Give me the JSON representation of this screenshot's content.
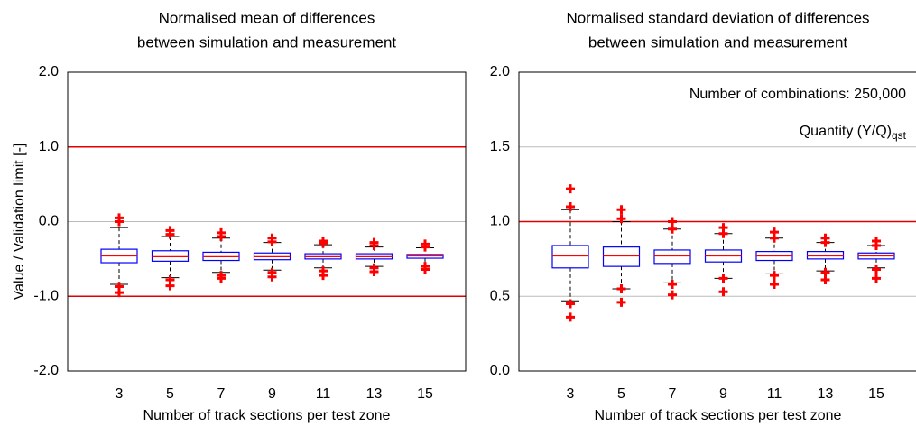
{
  "chart_data": [
    {
      "type": "box",
      "title": [
        "Normalised mean of differences",
        "between simulation and measurement"
      ],
      "y_label": "Value / Validation limit [-]",
      "x_label": "Number of track sections per test zone",
      "categories": [
        "3",
        "5",
        "7",
        "9",
        "11",
        "13",
        "15"
      ],
      "ylim": [
        -2,
        2
      ],
      "yticks": [
        {
          "value": 2,
          "label": "2.0"
        },
        {
          "value": 1,
          "label": "1.0"
        },
        {
          "value": 0,
          "label": "0.0"
        },
        {
          "value": -1,
          "label": "-1.0"
        },
        {
          "value": -2,
          "label": "-2.0"
        }
      ],
      "grid": true,
      "limit_lines": [
        1,
        -1
      ],
      "limit_color": "#e00000",
      "box_color": "#0000ff",
      "median_color": "#ff0000",
      "outlier_color": "#ff0000",
      "boxes": [
        {
          "whisker_low": -0.84,
          "q1": -0.55,
          "median": -0.46,
          "q3": -0.37,
          "whisker_high": -0.08,
          "outliers": [
            -0.87,
            -0.95,
            0.0,
            0.05
          ]
        },
        {
          "whisker_low": -0.75,
          "q1": -0.53,
          "median": -0.47,
          "q3": -0.39,
          "whisker_high": -0.2,
          "outliers": [
            -0.78,
            -0.86,
            -0.12,
            -0.17
          ]
        },
        {
          "whisker_low": -0.68,
          "q1": -0.52,
          "median": -0.47,
          "q3": -0.41,
          "whisker_high": -0.22,
          "outliers": [
            -0.72,
            -0.76,
            -0.15,
            -0.2
          ]
        },
        {
          "whisker_low": -0.65,
          "q1": -0.51,
          "median": -0.47,
          "q3": -0.42,
          "whisker_high": -0.28,
          "outliers": [
            -0.68,
            -0.74,
            -0.22,
            -0.27
          ]
        },
        {
          "whisker_low": -0.62,
          "q1": -0.5,
          "median": -0.47,
          "q3": -0.43,
          "whisker_high": -0.31,
          "outliers": [
            -0.66,
            -0.72,
            -0.26,
            -0.29
          ]
        },
        {
          "whisker_low": -0.6,
          "q1": -0.5,
          "median": -0.47,
          "q3": -0.43,
          "whisker_high": -0.34,
          "outliers": [
            -0.62,
            -0.67,
            -0.28,
            -0.32
          ]
        },
        {
          "whisker_low": -0.58,
          "q1": -0.49,
          "median": -0.46,
          "q3": -0.44,
          "whisker_high": -0.35,
          "outliers": [
            -0.6,
            -0.64,
            -0.3,
            -0.34
          ]
        }
      ]
    },
    {
      "type": "box",
      "title": [
        "Normalised standard deviation of differences",
        "between simulation and measurement"
      ],
      "x_label": "Number of track sections per test zone",
      "annotations": [
        {
          "text": "Number  of combinations: 250,000"
        },
        {
          "text": "Quantity (Y/Q)",
          "subscript": "qst"
        }
      ],
      "categories": [
        "3",
        "5",
        "7",
        "9",
        "11",
        "13",
        "15"
      ],
      "ylim": [
        0,
        2
      ],
      "yticks": [
        {
          "value": 2,
          "label": "2.0"
        },
        {
          "value": 1.5,
          "label": "1.5"
        },
        {
          "value": 1,
          "label": "1.0"
        },
        {
          "value": 0.5,
          "label": "0.5"
        },
        {
          "value": 0,
          "label": "0.0"
        }
      ],
      "grid": true,
      "limit_lines": [
        1
      ],
      "limit_color": "#e00000",
      "box_color": "#0000ff",
      "median_color": "#ff0000",
      "outlier_color": "#ff0000",
      "boxes": [
        {
          "whisker_low": 0.47,
          "q1": 0.69,
          "median": 0.77,
          "q3": 0.84,
          "whisker_high": 1.08,
          "outliers": [
            0.36,
            0.45,
            1.1,
            1.22
          ]
        },
        {
          "whisker_low": 0.55,
          "q1": 0.7,
          "median": 0.77,
          "q3": 0.83,
          "whisker_high": 1.0,
          "outliers": [
            0.46,
            0.55,
            1.02,
            1.08
          ]
        },
        {
          "whisker_low": 0.59,
          "q1": 0.72,
          "median": 0.77,
          "q3": 0.81,
          "whisker_high": 0.95,
          "outliers": [
            0.51,
            0.58,
            0.95,
            1.0
          ]
        },
        {
          "whisker_low": 0.62,
          "q1": 0.73,
          "median": 0.77,
          "q3": 0.81,
          "whisker_high": 0.92,
          "outliers": [
            0.53,
            0.62,
            0.92,
            0.96
          ]
        },
        {
          "whisker_low": 0.65,
          "q1": 0.74,
          "median": 0.77,
          "q3": 0.8,
          "whisker_high": 0.89,
          "outliers": [
            0.58,
            0.64,
            0.89,
            0.93
          ]
        },
        {
          "whisker_low": 0.67,
          "q1": 0.75,
          "median": 0.77,
          "q3": 0.8,
          "whisker_high": 0.86,
          "outliers": [
            0.61,
            0.66,
            0.86,
            0.89
          ]
        },
        {
          "whisker_low": 0.69,
          "q1": 0.75,
          "median": 0.77,
          "q3": 0.79,
          "whisker_high": 0.84,
          "outliers": [
            0.62,
            0.68,
            0.84,
            0.87
          ]
        }
      ]
    }
  ]
}
